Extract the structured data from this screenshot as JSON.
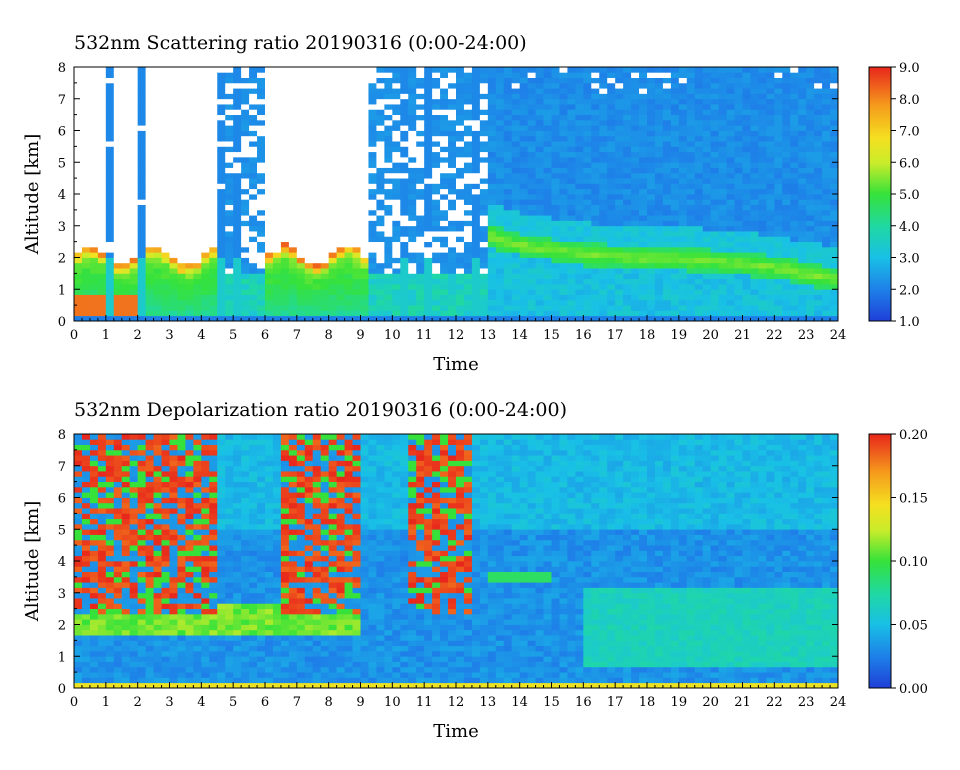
{
  "chart_data": [
    {
      "type": "heatmap",
      "title": "532nm Scattering ratio  20190316 (0:00-24:00)",
      "xlabel": "Time",
      "ylabel": "Altitude [km]",
      "xlim": [
        0,
        24
      ],
      "ylim": [
        0,
        8
      ],
      "x_ticks": [
        "0",
        "1",
        "2",
        "3",
        "4",
        "5",
        "6",
        "7",
        "8",
        "9",
        "10",
        "11",
        "12",
        "13",
        "14",
        "15",
        "16",
        "17",
        "18",
        "19",
        "20",
        "21",
        "22",
        "23",
        "24"
      ],
      "y_ticks": [
        "0",
        "1",
        "2",
        "3",
        "4",
        "5",
        "6",
        "7",
        "8"
      ],
      "colorbar": {
        "range": [
          1.0,
          9.0
        ],
        "ticks": [
          "1.0",
          "2.0",
          "3.0",
          "4.0",
          "5.0",
          "6.0",
          "7.0",
          "8.0",
          "9.0"
        ]
      },
      "features": {
        "high_clouds_white_above_km": 2.2,
        "opaque_periods_h": [
          [
            0,
            4.5
          ],
          [
            6.1,
            9.2
          ]
        ],
        "cloud_columns_h": [
          1.15,
          2.2,
          4.6,
          5.1,
          6.0,
          9.5,
          10.4,
          11.2,
          11.5,
          12.0,
          12.6
        ],
        "aerosol_layer": [
          [
            13,
            2.7
          ],
          [
            14,
            2.4
          ],
          [
            16,
            2.1
          ],
          [
            18,
            2.0
          ],
          [
            20,
            1.9
          ],
          [
            22,
            1.7
          ],
          [
            24,
            1.3
          ]
        ],
        "boundary_layer_top_km": 1.5
      }
    },
    {
      "type": "heatmap",
      "title": "532nm Depolarization ratio  20190316 (0:00-24:00)",
      "xlabel": "Time",
      "ylabel": "Altitude [km]",
      "xlim": [
        0,
        24
      ],
      "ylim": [
        0,
        8
      ],
      "x_ticks": [
        "0",
        "1",
        "2",
        "3",
        "4",
        "5",
        "6",
        "7",
        "8",
        "9",
        "10",
        "11",
        "12",
        "13",
        "14",
        "15",
        "16",
        "17",
        "18",
        "19",
        "20",
        "21",
        "22",
        "23",
        "24"
      ],
      "y_ticks": [
        "0",
        "1",
        "2",
        "3",
        "4",
        "5",
        "6",
        "7",
        "8"
      ],
      "colorbar": {
        "range": [
          0.0,
          0.2
        ],
        "ticks": [
          "0.00",
          "0.05",
          "0.10",
          "0.15",
          "0.20"
        ]
      },
      "features": {
        "noisy_high_depol_periods_h": [
          [
            0,
            4.5
          ],
          [
            6.5,
            9.0
          ],
          [
            10.6,
            12.6
          ]
        ],
        "layer_3_5km_band_h": [
          13,
          15
        ],
        "lower_layer_green_h": [
          16,
          24
        ]
      }
    }
  ]
}
